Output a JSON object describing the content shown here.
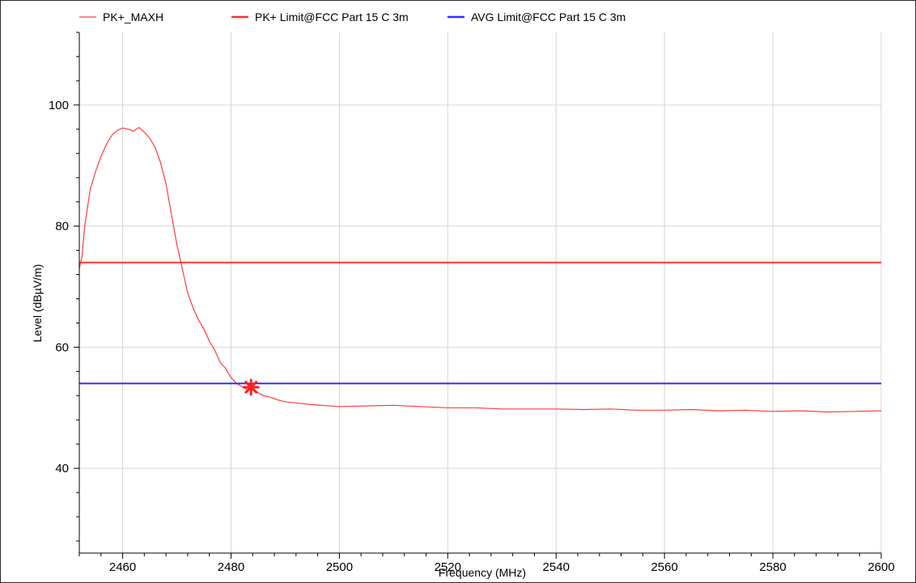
{
  "chart_data": {
    "type": "line",
    "xlabel": "Frequency (MHz)",
    "ylabel": "Level (dBµV/m)",
    "xlim": [
      2452,
      2600
    ],
    "ylim": [
      26,
      112
    ],
    "x_ticks": [
      2460,
      2480,
      2500,
      2520,
      2540,
      2560,
      2580,
      2600
    ],
    "y_ticks": [
      40,
      60,
      80,
      100
    ],
    "grid": true,
    "legend_position": "top",
    "legend": [
      {
        "label": "PK+_MAXH",
        "color": "#ff3c3c"
      },
      {
        "label": "PK+ Limit@FCC Part 15 C  3m",
        "color": "#ff3030"
      },
      {
        "label": "AVG Limit@FCC Part 15 C  3m",
        "color": "#3030ff"
      }
    ],
    "series": [
      {
        "name": "PK+_MAXH",
        "color": "#ff3c3c",
        "x": [
          2452,
          2452.5,
          2453,
          2454,
          2455,
          2456,
          2457,
          2458,
          2459,
          2460,
          2461,
          2462,
          2463,
          2464,
          2465,
          2466,
          2467,
          2468,
          2469,
          2470,
          2471,
          2472,
          2473,
          2474,
          2475,
          2476,
          2477,
          2478,
          2479,
          2480,
          2481,
          2482,
          2483,
          2484,
          2485,
          2486,
          2487,
          2488,
          2489,
          2490,
          2492,
          2495,
          2500,
          2505,
          2510,
          2515,
          2520,
          2525,
          2530,
          2535,
          2540,
          2545,
          2550,
          2555,
          2560,
          2565,
          2570,
          2575,
          2580,
          2585,
          2590,
          2595,
          2600
        ],
        "y": [
          73,
          75,
          80,
          86,
          89,
          91.5,
          93.5,
          95,
          95.8,
          96.2,
          96,
          95.7,
          96.3,
          95.5,
          94.5,
          93,
          90.5,
          87,
          82,
          77,
          73,
          69,
          66.5,
          64.5,
          63,
          61,
          59.5,
          57.5,
          56.5,
          55,
          54,
          53.5,
          53,
          53.2,
          52.5,
          52,
          51.8,
          51.5,
          51.2,
          51,
          50.8,
          50.5,
          50.2,
          50.3,
          50.4,
          50.2,
          50,
          50,
          49.8,
          49.8,
          49.8,
          49.7,
          49.8,
          49.6,
          49.6,
          49.7,
          49.5,
          49.6,
          49.4,
          49.5,
          49.3,
          49.4,
          49.5
        ]
      },
      {
        "name": "PK+ Limit@FCC Part 15 C  3m",
        "color": "#ff3030",
        "x": [
          2452,
          2600
        ],
        "y": [
          74,
          74
        ]
      },
      {
        "name": "AVG Limit@FCC Part 15 C  3m",
        "color": "#3030ff",
        "x": [
          2452,
          2600
        ],
        "y": [
          54,
          54
        ]
      }
    ],
    "marker": {
      "x": 2483.7,
      "y": 53.4,
      "color": "#ff2020",
      "symbol": "star"
    }
  }
}
